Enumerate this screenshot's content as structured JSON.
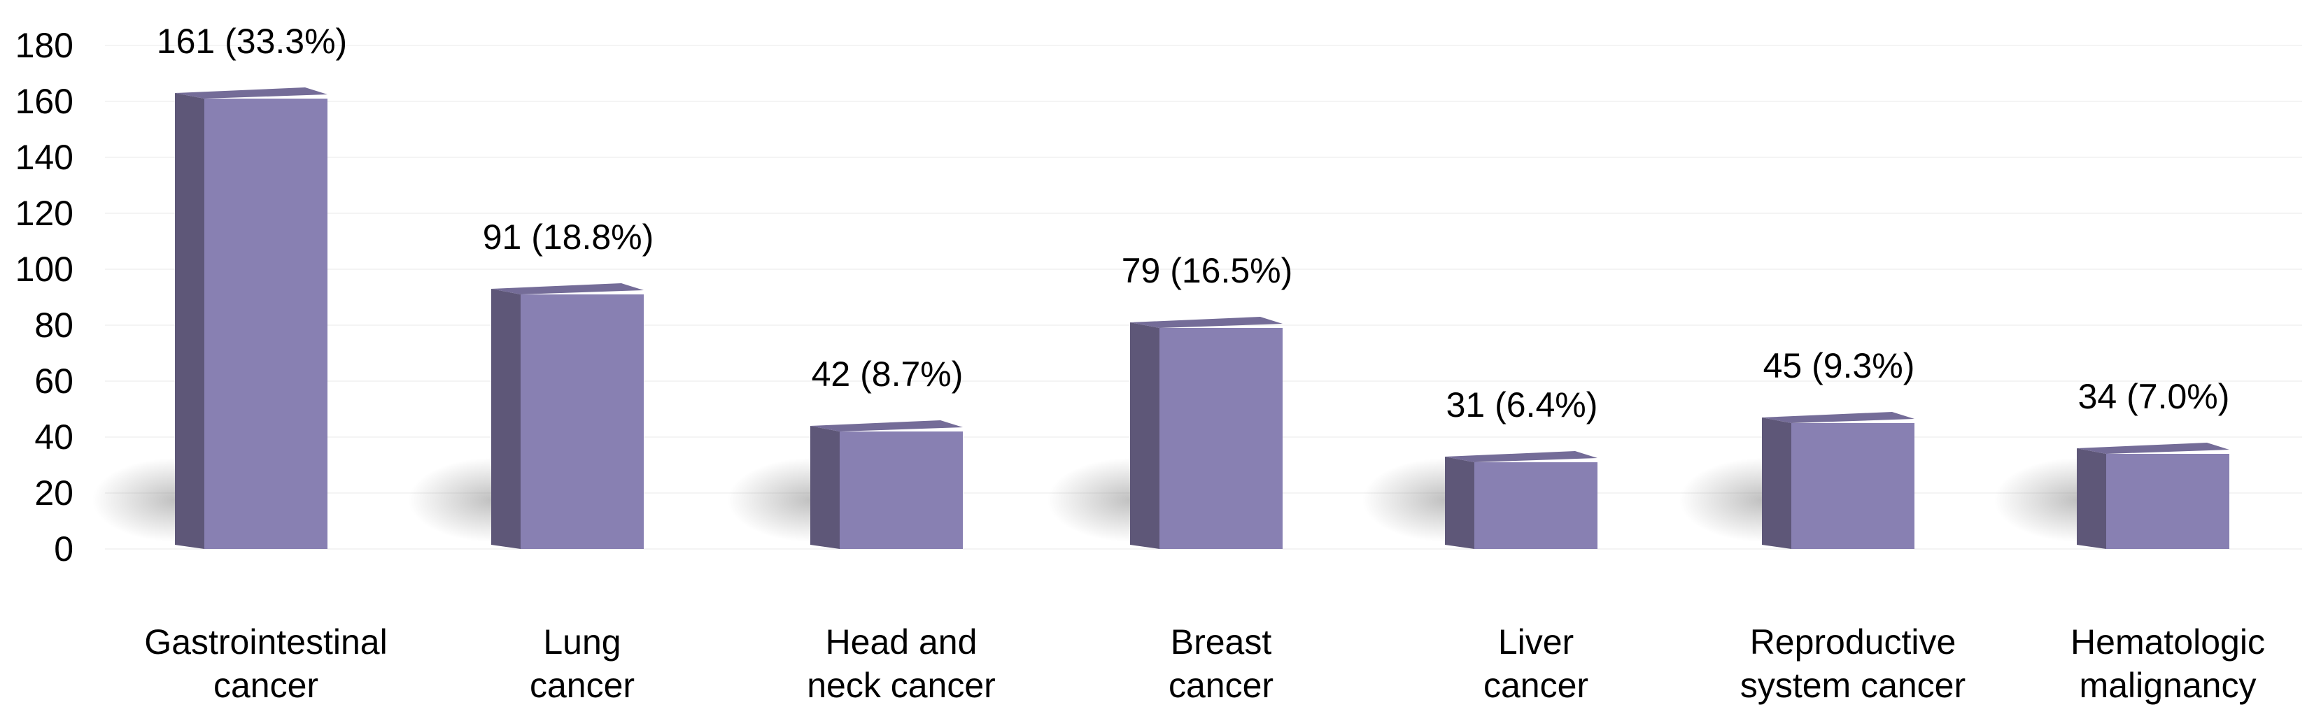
{
  "chart_data": {
    "type": "bar",
    "title": "",
    "xlabel": "",
    "ylabel": "",
    "ylim": [
      0,
      180
    ],
    "yticks": [
      0,
      20,
      40,
      60,
      80,
      100,
      120,
      140,
      160,
      180
    ],
    "grid": true,
    "legend": "none",
    "categories": [
      [
        "Gastrointestinal",
        "cancer"
      ],
      [
        "Lung",
        "cancer"
      ],
      [
        "Head and",
        "neck cancer"
      ],
      [
        "Breast",
        "cancer"
      ],
      [
        "Liver",
        "cancer"
      ],
      [
        "Reproductive",
        "system cancer"
      ],
      [
        "Hematologic",
        "malignancy"
      ]
    ],
    "values": [
      161,
      91,
      42,
      79,
      31,
      45,
      34
    ],
    "data_labels": [
      "161 (33.3%)",
      "91 (18.8%)",
      "42 (8.7%)",
      "79 (16.5%)",
      "31 (6.4%)",
      "45 (9.3%)",
      "34 (7.0%)"
    ],
    "colors": {
      "front": "#8880b2",
      "side": "#5e5778",
      "top": "#746c98",
      "shadow": "#9a9a9a"
    }
  }
}
